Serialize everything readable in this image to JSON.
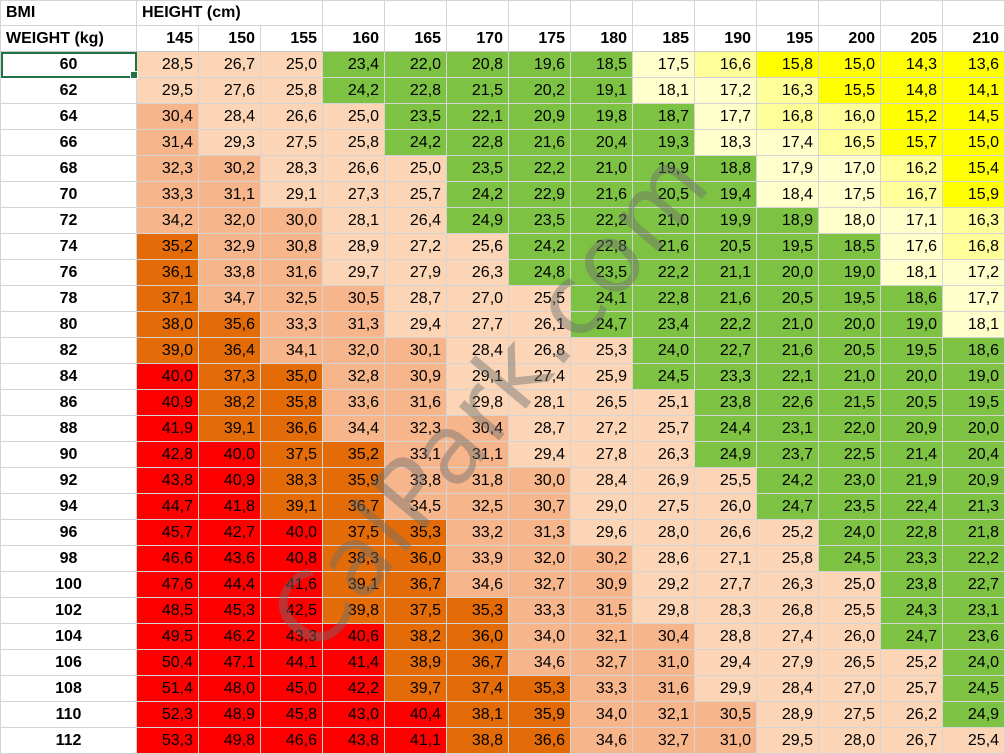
{
  "sheet": {
    "title_cell": "BMI",
    "height_label": "HEIGHT (cm)",
    "weight_label": "WEIGHT (kg)",
    "heights": [
      "145",
      "150",
      "155",
      "160",
      "165",
      "170",
      "175",
      "180",
      "185",
      "190",
      "195",
      "200",
      "205",
      "210"
    ],
    "rows": [
      {
        "weight": "60",
        "values": [
          "28,5",
          "26,7",
          "25,0",
          "23,4",
          "22,0",
          "20,8",
          "19,6",
          "18,5",
          "17,5",
          "16,6",
          "15,8",
          "15,0",
          "14,3",
          "13,6"
        ]
      },
      {
        "weight": "62",
        "values": [
          "29,5",
          "27,6",
          "25,8",
          "24,2",
          "22,8",
          "21,5",
          "20,2",
          "19,1",
          "18,1",
          "17,2",
          "16,3",
          "15,5",
          "14,8",
          "14,1"
        ]
      },
      {
        "weight": "64",
        "values": [
          "30,4",
          "28,4",
          "26,6",
          "25,0",
          "23,5",
          "22,1",
          "20,9",
          "19,8",
          "18,7",
          "17,7",
          "16,8",
          "16,0",
          "15,2",
          "14,5"
        ]
      },
      {
        "weight": "66",
        "values": [
          "31,4",
          "29,3",
          "27,5",
          "25,8",
          "24,2",
          "22,8",
          "21,6",
          "20,4",
          "19,3",
          "18,3",
          "17,4",
          "16,5",
          "15,7",
          "15,0"
        ]
      },
      {
        "weight": "68",
        "values": [
          "32,3",
          "30,2",
          "28,3",
          "26,6",
          "25,0",
          "23,5",
          "22,2",
          "21,0",
          "19,9",
          "18,8",
          "17,9",
          "17,0",
          "16,2",
          "15,4"
        ]
      },
      {
        "weight": "70",
        "values": [
          "33,3",
          "31,1",
          "29,1",
          "27,3",
          "25,7",
          "24,2",
          "22,9",
          "21,6",
          "20,5",
          "19,4",
          "18,4",
          "17,5",
          "16,7",
          "15,9"
        ]
      },
      {
        "weight": "72",
        "values": [
          "34,2",
          "32,0",
          "30,0",
          "28,1",
          "26,4",
          "24,9",
          "23,5",
          "22,2",
          "21,0",
          "19,9",
          "18,9",
          "18,0",
          "17,1",
          "16,3"
        ]
      },
      {
        "weight": "74",
        "values": [
          "35,2",
          "32,9",
          "30,8",
          "28,9",
          "27,2",
          "25,6",
          "24,2",
          "22,8",
          "21,6",
          "20,5",
          "19,5",
          "18,5",
          "17,6",
          "16,8"
        ]
      },
      {
        "weight": "76",
        "values": [
          "36,1",
          "33,8",
          "31,6",
          "29,7",
          "27,9",
          "26,3",
          "24,8",
          "23,5",
          "22,2",
          "21,1",
          "20,0",
          "19,0",
          "18,1",
          "17,2"
        ]
      },
      {
        "weight": "78",
        "values": [
          "37,1",
          "34,7",
          "32,5",
          "30,5",
          "28,7",
          "27,0",
          "25,5",
          "24,1",
          "22,8",
          "21,6",
          "20,5",
          "19,5",
          "18,6",
          "17,7"
        ]
      },
      {
        "weight": "80",
        "values": [
          "38,0",
          "35,6",
          "33,3",
          "31,3",
          "29,4",
          "27,7",
          "26,1",
          "24,7",
          "23,4",
          "22,2",
          "21,0",
          "20,0",
          "19,0",
          "18,1"
        ]
      },
      {
        "weight": "82",
        "values": [
          "39,0",
          "36,4",
          "34,1",
          "32,0",
          "30,1",
          "28,4",
          "26,8",
          "25,3",
          "24,0",
          "22,7",
          "21,6",
          "20,5",
          "19,5",
          "18,6"
        ]
      },
      {
        "weight": "84",
        "values": [
          "40,0",
          "37,3",
          "35,0",
          "32,8",
          "30,9",
          "29,1",
          "27,4",
          "25,9",
          "24,5",
          "23,3",
          "22,1",
          "21,0",
          "20,0",
          "19,0"
        ]
      },
      {
        "weight": "86",
        "values": [
          "40,9",
          "38,2",
          "35,8",
          "33,6",
          "31,6",
          "29,8",
          "28,1",
          "26,5",
          "25,1",
          "23,8",
          "22,6",
          "21,5",
          "20,5",
          "19,5"
        ]
      },
      {
        "weight": "88",
        "values": [
          "41,9",
          "39,1",
          "36,6",
          "34,4",
          "32,3",
          "30,4",
          "28,7",
          "27,2",
          "25,7",
          "24,4",
          "23,1",
          "22,0",
          "20,9",
          "20,0"
        ]
      },
      {
        "weight": "90",
        "values": [
          "42,8",
          "40,0",
          "37,5",
          "35,2",
          "33,1",
          "31,1",
          "29,4",
          "27,8",
          "26,3",
          "24,9",
          "23,7",
          "22,5",
          "21,4",
          "20,4"
        ]
      },
      {
        "weight": "92",
        "values": [
          "43,8",
          "40,9",
          "38,3",
          "35,9",
          "33,8",
          "31,8",
          "30,0",
          "28,4",
          "26,9",
          "25,5",
          "24,2",
          "23,0",
          "21,9",
          "20,9"
        ]
      },
      {
        "weight": "94",
        "values": [
          "44,7",
          "41,8",
          "39,1",
          "36,7",
          "34,5",
          "32,5",
          "30,7",
          "29,0",
          "27,5",
          "26,0",
          "24,7",
          "23,5",
          "22,4",
          "21,3"
        ]
      },
      {
        "weight": "96",
        "values": [
          "45,7",
          "42,7",
          "40,0",
          "37,5",
          "35,3",
          "33,2",
          "31,3",
          "29,6",
          "28,0",
          "26,6",
          "25,2",
          "24,0",
          "22,8",
          "21,8"
        ]
      },
      {
        "weight": "98",
        "values": [
          "46,6",
          "43,6",
          "40,8",
          "38,3",
          "36,0",
          "33,9",
          "32,0",
          "30,2",
          "28,6",
          "27,1",
          "25,8",
          "24,5",
          "23,3",
          "22,2"
        ]
      },
      {
        "weight": "100",
        "values": [
          "47,6",
          "44,4",
          "41,6",
          "39,1",
          "36,7",
          "34,6",
          "32,7",
          "30,9",
          "29,2",
          "27,7",
          "26,3",
          "25,0",
          "23,8",
          "22,7"
        ]
      },
      {
        "weight": "102",
        "values": [
          "48,5",
          "45,3",
          "42,5",
          "39,8",
          "37,5",
          "35,3",
          "33,3",
          "31,5",
          "29,8",
          "28,3",
          "26,8",
          "25,5",
          "24,3",
          "23,1"
        ]
      },
      {
        "weight": "104",
        "values": [
          "49,5",
          "46,2",
          "43,3",
          "40,6",
          "38,2",
          "36,0",
          "34,0",
          "32,1",
          "30,4",
          "28,8",
          "27,4",
          "26,0",
          "24,7",
          "23,6"
        ]
      },
      {
        "weight": "106",
        "values": [
          "50,4",
          "47,1",
          "44,1",
          "41,4",
          "38,9",
          "36,7",
          "34,6",
          "32,7",
          "31,0",
          "29,4",
          "27,9",
          "26,5",
          "25,2",
          "24,0"
        ]
      },
      {
        "weight": "108",
        "values": [
          "51,4",
          "48,0",
          "45,0",
          "42,2",
          "39,7",
          "37,4",
          "35,3",
          "33,3",
          "31,6",
          "29,9",
          "28,4",
          "27,0",
          "25,7",
          "24,5"
        ]
      },
      {
        "weight": "110",
        "values": [
          "52,3",
          "48,9",
          "45,8",
          "43,0",
          "40,4",
          "38,1",
          "35,9",
          "34,0",
          "32,1",
          "30,5",
          "28,9",
          "27,5",
          "26,2",
          "24,9"
        ]
      },
      {
        "weight": "112",
        "values": [
          "53,3",
          "49,8",
          "46,6",
          "43,8",
          "41,1",
          "38,8",
          "36,6",
          "34,6",
          "32,7",
          "31,0",
          "29,5",
          "28,0",
          "26,7",
          "25,4"
        ]
      }
    ]
  },
  "colors": {
    "severe_underweight": "#ffff00",
    "underweight": "#ffff99",
    "mild_underweight": "#ffffcc",
    "normal": "#7dc242",
    "overweight": "#fbd5b5",
    "obese_1": "#f7b58b",
    "obese_2": "#e36c09",
    "obese_3": "#ff0000"
  },
  "watermark": "CalPark.com"
}
